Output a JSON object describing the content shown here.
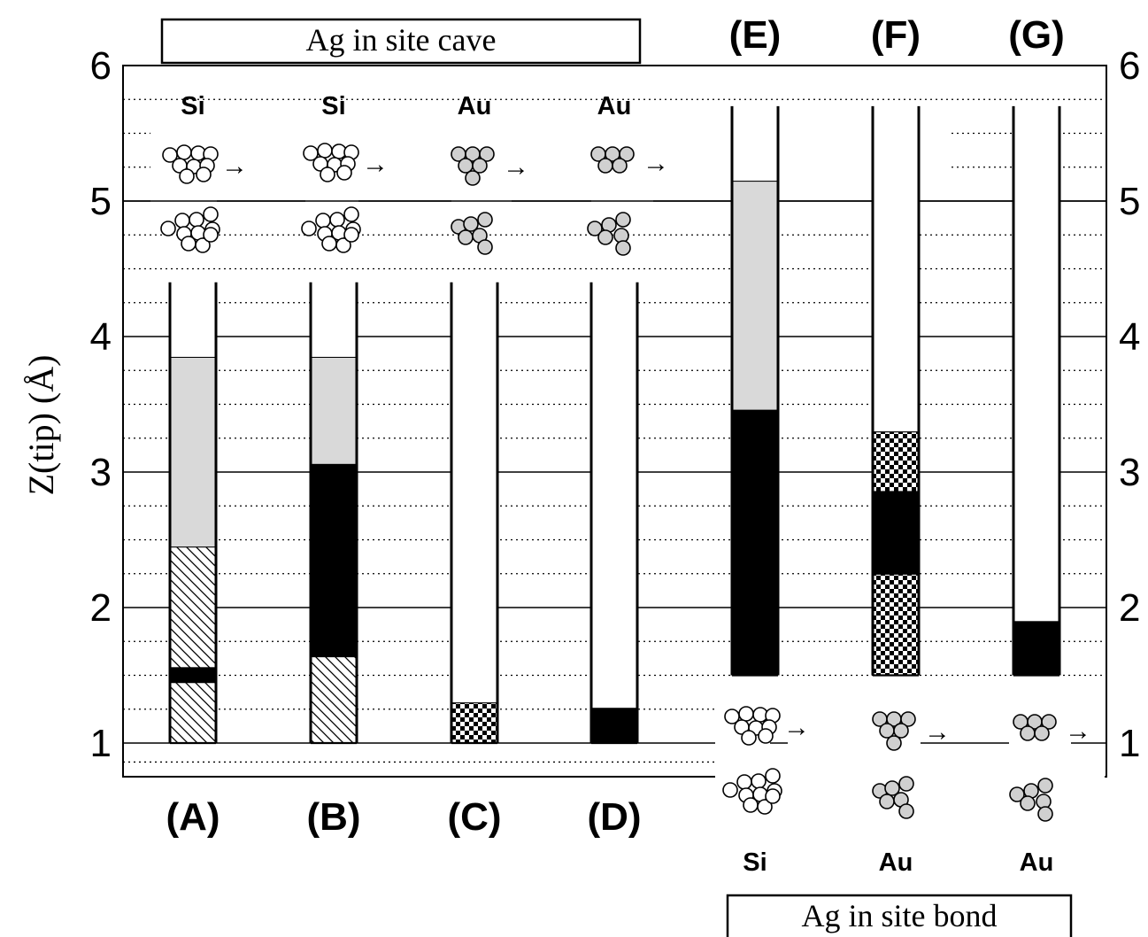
{
  "chart_data": {
    "type": "bar",
    "ylabel": "Z(tip) (Å)",
    "ylim": [
      0.8,
      6.0
    ],
    "yticks": [
      1,
      2,
      3,
      4,
      5,
      6
    ],
    "dotted_gridlines": [
      0.86,
      1.25,
      1.5,
      1.75,
      2.25,
      2.5,
      2.75,
      3.25,
      3.5,
      3.75,
      4.25,
      4.5,
      4.75,
      5.25,
      5.5,
      5.75
    ],
    "bar_top": [
      4.4,
      4.4,
      4.4,
      4.4,
      5.7,
      5.7,
      5.7
    ],
    "groups": [
      {
        "title": "Ag in site cave",
        "columns": [
          "A",
          "B",
          "C",
          "D"
        ],
        "elements": [
          "Si",
          "Si",
          "Au",
          "Au"
        ]
      },
      {
        "title": "Ag in site bond",
        "columns": [
          "E",
          "F",
          "G"
        ],
        "elements": [
          "Si",
          "Au",
          "Au"
        ]
      }
    ],
    "columns": [
      {
        "label": "(A)",
        "element": "Si",
        "segments": [
          {
            "from": 1.0,
            "to": 1.45,
            "fill": "hatch"
          },
          {
            "from": 1.45,
            "to": 1.56,
            "fill": "black"
          },
          {
            "from": 1.56,
            "to": 2.45,
            "fill": "hatch"
          },
          {
            "from": 2.45,
            "to": 3.85,
            "fill": "gray"
          },
          {
            "from": 3.85,
            "to": 4.4,
            "fill": "white"
          }
        ]
      },
      {
        "label": "(B)",
        "element": "Si",
        "segments": [
          {
            "from": 1.0,
            "to": 1.64,
            "fill": "hatch"
          },
          {
            "from": 1.64,
            "to": 3.06,
            "fill": "black"
          },
          {
            "from": 3.06,
            "to": 3.85,
            "fill": "gray"
          },
          {
            "from": 3.85,
            "to": 4.4,
            "fill": "white"
          }
        ]
      },
      {
        "label": "(C)",
        "element": "Au",
        "segments": [
          {
            "from": 1.0,
            "to": 1.3,
            "fill": "checker"
          },
          {
            "from": 1.3,
            "to": 4.4,
            "fill": "white"
          }
        ]
      },
      {
        "label": "(D)",
        "element": "Au",
        "segments": [
          {
            "from": 1.0,
            "to": 1.26,
            "fill": "black"
          },
          {
            "from": 1.26,
            "to": 4.4,
            "fill": "white"
          }
        ]
      },
      {
        "label": "(E)",
        "element": "Si",
        "segments": [
          {
            "from": 1.5,
            "to": 3.46,
            "fill": "black"
          },
          {
            "from": 3.46,
            "to": 5.15,
            "fill": "gray"
          },
          {
            "from": 5.15,
            "to": 5.7,
            "fill": "white"
          }
        ]
      },
      {
        "label": "(F)",
        "element": "Au",
        "segments": [
          {
            "from": 1.5,
            "to": 2.25,
            "fill": "checker"
          },
          {
            "from": 2.25,
            "to": 2.86,
            "fill": "black"
          },
          {
            "from": 2.86,
            "to": 3.3,
            "fill": "checker"
          },
          {
            "from": 3.3,
            "to": 5.7,
            "fill": "white"
          }
        ]
      },
      {
        "label": "(G)",
        "element": "Au",
        "segments": [
          {
            "from": 1.5,
            "to": 1.9,
            "fill": "black"
          },
          {
            "from": 1.9,
            "to": 5.7,
            "fill": "white"
          }
        ]
      }
    ],
    "colors": {
      "black": "#000000",
      "gray": "#d9d9d9",
      "white": "#ffffff",
      "atom_gray": "#d0d0d0"
    },
    "icons": {
      "arrow": "→",
      "cluster": "atom-cluster-icon"
    }
  }
}
